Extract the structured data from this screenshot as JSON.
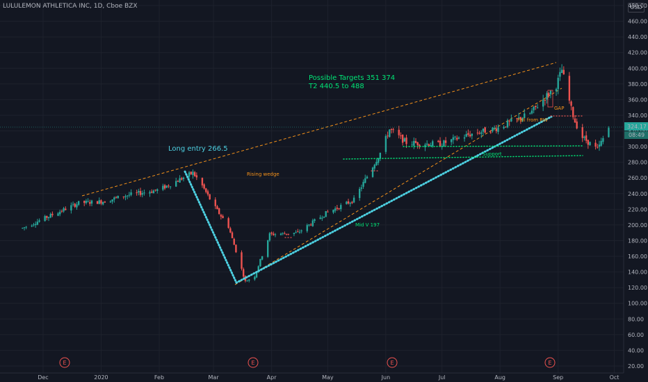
{
  "header": {
    "title": "LULULEMON ATHLETICA INC, 1D, Cboe BZX",
    "unit": "USD"
  },
  "chart_data": {
    "type": "candlestick",
    "title": "LULULEMON ATHLETICA INC, 1D, Cboe BZX",
    "currency": "USD",
    "ylim": [
      20,
      480
    ],
    "y_ticks": [
      20,
      40,
      60,
      80,
      100,
      120,
      140,
      160,
      180,
      200,
      220,
      240,
      260,
      280,
      300,
      320,
      340,
      360,
      380,
      400,
      420,
      440,
      460,
      480
    ],
    "x_ticks": [
      "Dec",
      "2020",
      "Feb",
      "Mar",
      "Apr",
      "May",
      "Jun",
      "Jul",
      "Aug",
      "Sep",
      "Oct"
    ],
    "last_price": "324.17",
    "countdown": "08:49",
    "price_path": [
      [
        "2019-11-20",
        196
      ],
      [
        "2019-12-05",
        212
      ],
      [
        "2019-12-20",
        228
      ],
      [
        "2020-01-02",
        230
      ],
      [
        "2020-01-15",
        238
      ],
      [
        "2020-02-01",
        245
      ],
      [
        "2020-02-19",
        266.5
      ],
      [
        "2020-02-24",
        250
      ],
      [
        "2020-03-01",
        225
      ],
      [
        "2020-03-09",
        198
      ],
      [
        "2020-03-18",
        128
      ],
      [
        "2020-03-23",
        135
      ],
      [
        "2020-03-31",
        188
      ],
      [
        "2020-04-15",
        190
      ],
      [
        "2020-04-30",
        215
      ],
      [
        "2020-05-15",
        232
      ],
      [
        "2020-05-29",
        292
      ],
      [
        "2020-06-03",
        322
      ],
      [
        "2020-06-12",
        305
      ],
      [
        "2020-06-30",
        303
      ],
      [
        "2020-07-15",
        315
      ],
      [
        "2020-07-31",
        324
      ],
      [
        "2020-08-17",
        342
      ],
      [
        "2020-08-31",
        378
      ],
      [
        "2020-09-03",
        398
      ],
      [
        "2020-09-08",
        348
      ],
      [
        "2020-09-10",
        332
      ],
      [
        "2020-09-14",
        312
      ],
      [
        "2020-09-22",
        296
      ],
      [
        "2020-09-28",
        324.17
      ]
    ],
    "annotations": [
      "Possible Targets   351  374",
      "T2  440.5 to 488",
      "Long entry 266.5",
      "Rising wedge",
      "Mid V  197",
      "Support",
      "Fall from RW",
      "GAP"
    ],
    "earnings_markers": [
      "E",
      "E",
      "E",
      "E"
    ]
  }
}
